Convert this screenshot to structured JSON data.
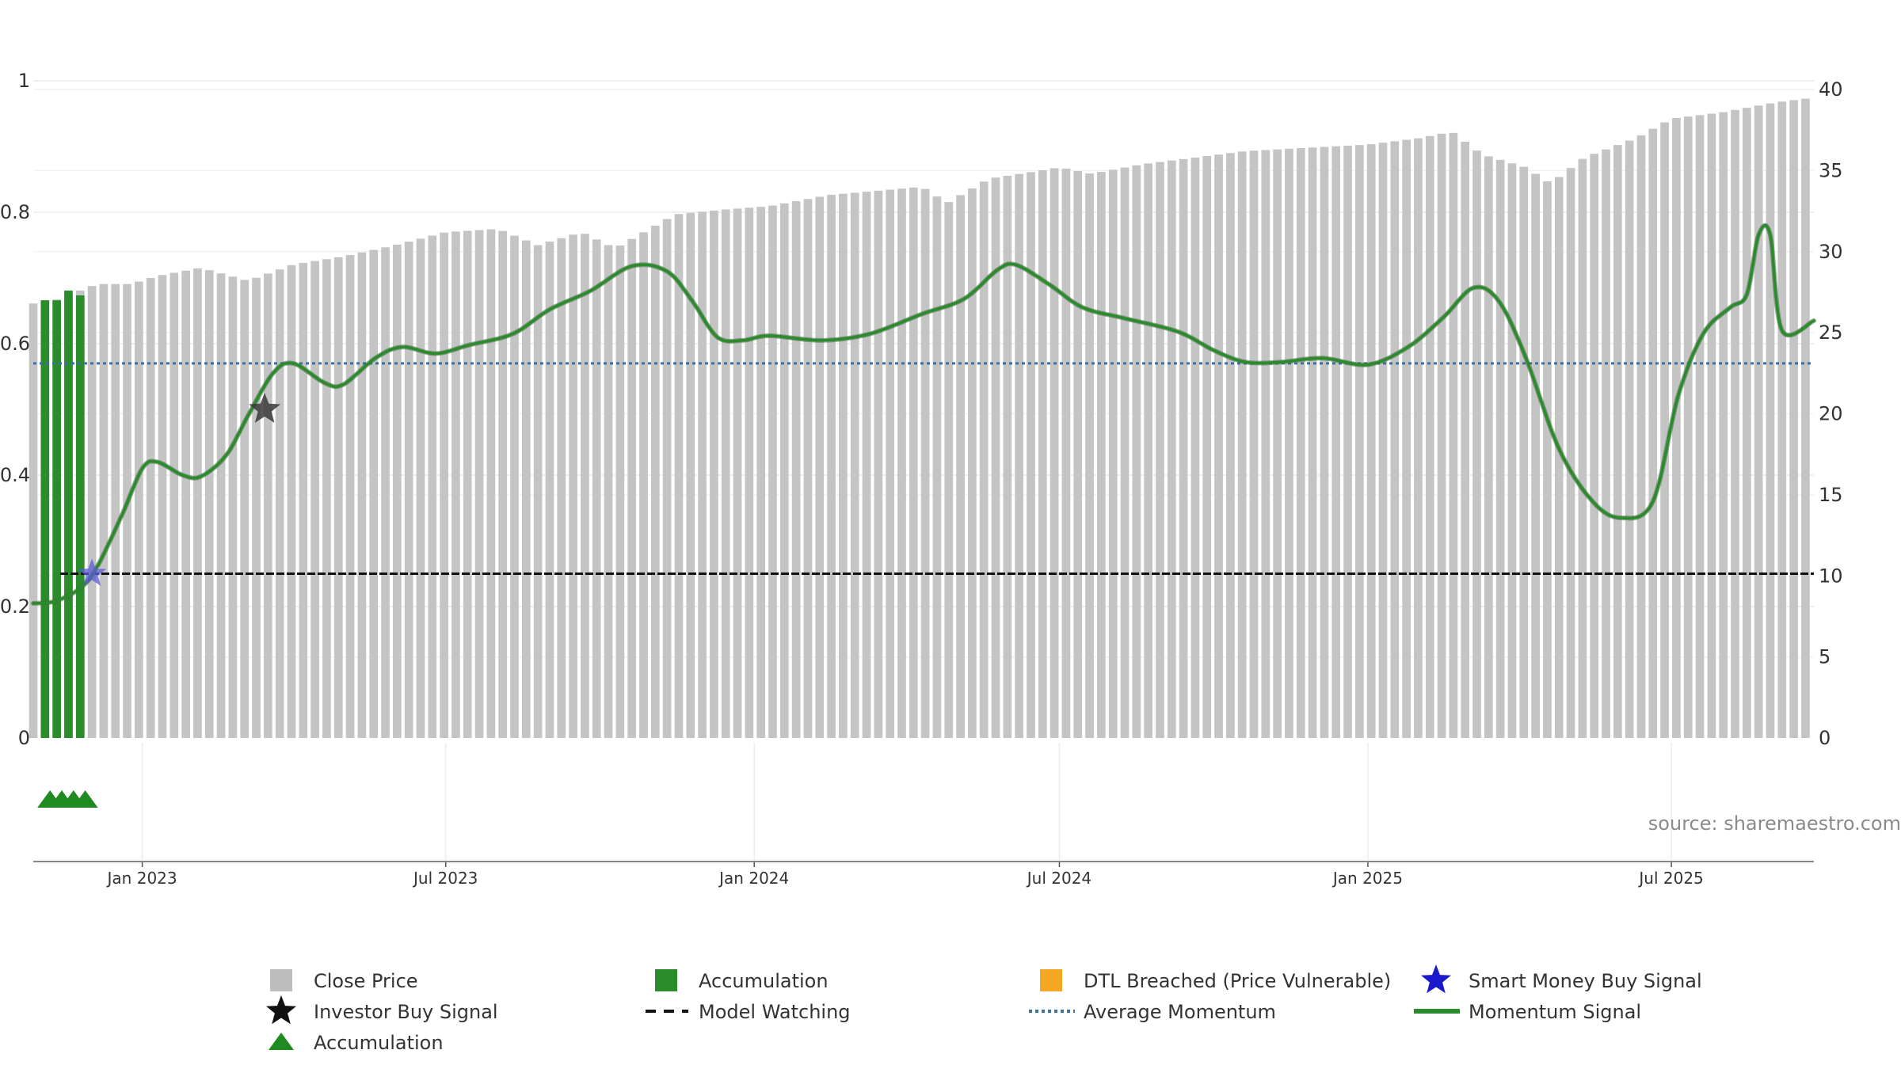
{
  "chart_data": {
    "type": "bar+line",
    "source": "source: sharemaestro.com",
    "left_axis": {
      "range": [
        0,
        1
      ],
      "ticks": [
        "0",
        "0.2",
        "0.4",
        "0.6",
        "0.8",
        "1"
      ]
    },
    "right_axis": {
      "range": [
        0,
        40
      ],
      "ticks": [
        "0",
        "5",
        "10",
        "15",
        "20",
        "25",
        "30",
        "35",
        "40"
      ]
    },
    "x_axis": {
      "start": "2022-10-28",
      "end": "2025-09-24",
      "ticks": [
        {
          "date": "2023-01-01",
          "label": "Jan 2023"
        },
        {
          "date": "2023-07-01",
          "label": "Jul 2023"
        },
        {
          "date": "2024-01-01",
          "label": "Jan 2024"
        },
        {
          "date": "2024-07-01",
          "label": "Jul 2024"
        },
        {
          "date": "2025-01-01",
          "label": "Jan 2025"
        },
        {
          "date": "2025-07-01",
          "label": "Jul 2025"
        }
      ]
    },
    "close_price": {
      "name": "Close Price",
      "bar_interval_weeks": 1,
      "anchors": [
        [
          "2022-10-28",
          26.8
        ],
        [
          "2022-11-10",
          27.0
        ],
        [
          "2022-11-25",
          27.6
        ],
        [
          "2022-12-05",
          28.0
        ],
        [
          "2022-12-25",
          28.0
        ],
        [
          "2023-01-10",
          28.5
        ],
        [
          "2023-02-05",
          29.0
        ],
        [
          "2023-03-05",
          28.2
        ],
        [
          "2023-04-01",
          29.2
        ],
        [
          "2023-05-01",
          29.7
        ],
        [
          "2023-06-01",
          30.4
        ],
        [
          "2023-07-01",
          31.2
        ],
        [
          "2023-08-01",
          31.4
        ],
        [
          "2023-08-25",
          30.4
        ],
        [
          "2023-09-20",
          31.2
        ],
        [
          "2023-10-10",
          30.2
        ],
        [
          "2023-11-15",
          32.3
        ],
        [
          "2023-12-15",
          32.6
        ],
        [
          "2024-01-10",
          32.8
        ],
        [
          "2024-02-15",
          33.5
        ],
        [
          "2024-03-20",
          33.8
        ],
        [
          "2024-04-10",
          34.0
        ],
        [
          "2024-04-25",
          33.0
        ],
        [
          "2024-05-20",
          34.5
        ],
        [
          "2024-06-20",
          35.0
        ],
        [
          "2024-07-01",
          35.2
        ],
        [
          "2024-07-20",
          34.8
        ],
        [
          "2024-08-20",
          35.4
        ],
        [
          "2024-09-20",
          35.8
        ],
        [
          "2024-10-20",
          36.2
        ],
        [
          "2024-11-25",
          36.4
        ],
        [
          "2025-01-01",
          36.6
        ],
        [
          "2025-02-01",
          37.0
        ],
        [
          "2025-02-20",
          37.4
        ],
        [
          "2025-03-10",
          36.0
        ],
        [
          "2025-04-05",
          35.2
        ],
        [
          "2025-04-20",
          34.2
        ],
        [
          "2025-05-10",
          35.8
        ],
        [
          "2025-06-10",
          37.0
        ],
        [
          "2025-07-01",
          38.2
        ],
        [
          "2025-08-01",
          38.6
        ],
        [
          "2025-09-01",
          39.2
        ],
        [
          "2025-09-24",
          39.5
        ]
      ]
    },
    "accumulation_bars": {
      "name": "Accumulation",
      "color": "#2a8c2a",
      "bars": [
        [
          "2022-11-04",
          27.0
        ],
        [
          "2022-11-11",
          27.0
        ],
        [
          "2022-11-18",
          27.6
        ],
        [
          "2022-11-25",
          27.3
        ]
      ]
    },
    "momentum_signal": {
      "name": "Momentum Signal",
      "color": "#2b8a2b",
      "axis": "left",
      "points": [
        [
          "2022-10-28",
          0.205
        ],
        [
          "2022-11-10",
          0.208
        ],
        [
          "2022-11-25",
          0.228
        ],
        [
          "2022-12-05",
          0.26
        ],
        [
          "2022-12-20",
          0.34
        ],
        [
          "2023-01-01",
          0.41
        ],
        [
          "2023-01-10",
          0.42
        ],
        [
          "2023-01-25",
          0.4
        ],
        [
          "2023-02-05",
          0.398
        ],
        [
          "2023-02-20",
          0.43
        ],
        [
          "2023-03-05",
          0.49
        ],
        [
          "2023-03-20",
          0.555
        ],
        [
          "2023-04-01",
          0.57
        ],
        [
          "2023-04-20",
          0.54
        ],
        [
          "2023-05-01",
          0.538
        ],
        [
          "2023-05-20",
          0.578
        ],
        [
          "2023-06-05",
          0.595
        ],
        [
          "2023-06-25",
          0.585
        ],
        [
          "2023-07-15",
          0.598
        ],
        [
          "2023-08-10",
          0.615
        ],
        [
          "2023-09-01",
          0.652
        ],
        [
          "2023-09-25",
          0.68
        ],
        [
          "2023-10-20",
          0.718
        ],
        [
          "2023-11-10",
          0.71
        ],
        [
          "2023-11-25",
          0.665
        ],
        [
          "2023-12-10",
          0.61
        ],
        [
          "2023-12-25",
          0.605
        ],
        [
          "2024-01-10",
          0.612
        ],
        [
          "2024-02-10",
          0.605
        ],
        [
          "2024-03-10",
          0.615
        ],
        [
          "2024-04-10",
          0.645
        ],
        [
          "2024-05-05",
          0.668
        ],
        [
          "2024-05-25",
          0.712
        ],
        [
          "2024-06-05",
          0.72
        ],
        [
          "2024-06-25",
          0.69
        ],
        [
          "2024-07-15",
          0.655
        ],
        [
          "2024-08-10",
          0.638
        ],
        [
          "2024-09-10",
          0.618
        ],
        [
          "2024-10-01",
          0.59
        ],
        [
          "2024-10-20",
          0.572
        ],
        [
          "2024-11-10",
          0.572
        ],
        [
          "2024-12-05",
          0.578
        ],
        [
          "2025-01-01",
          0.568
        ],
        [
          "2025-01-25",
          0.595
        ],
        [
          "2025-02-15",
          0.64
        ],
        [
          "2025-03-05",
          0.685
        ],
        [
          "2025-03-20",
          0.665
        ],
        [
          "2025-04-05",
          0.58
        ],
        [
          "2025-04-25",
          0.44
        ],
        [
          "2025-05-15",
          0.36
        ],
        [
          "2025-06-01",
          0.335
        ],
        [
          "2025-06-20",
          0.36
        ],
        [
          "2025-07-05",
          0.52
        ],
        [
          "2025-07-20",
          0.615
        ],
        [
          "2025-08-05",
          0.655
        ],
        [
          "2025-08-15",
          0.675
        ],
        [
          "2025-08-22",
          0.765
        ],
        [
          "2025-08-29",
          0.765
        ],
        [
          "2025-09-05",
          0.62
        ],
        [
          "2025-09-24",
          0.635
        ]
      ]
    },
    "average_momentum": {
      "name": "Average Momentum",
      "value": 0.57,
      "color": "#3a6fa0"
    },
    "model_watching": {
      "name": "Model Watching",
      "value": 0.25,
      "color": "#111111"
    },
    "investor_buy_signals": [
      {
        "date": "2023-03-15",
        "value": 0.5
      }
    ],
    "smart_money_buy_signals": [
      {
        "date": "2022-12-02",
        "value": 0.25
      }
    ],
    "accumulation_triangles": [
      "2022-11-07",
      "2022-11-14",
      "2022-11-21",
      "2022-11-28"
    ],
    "legend": [
      {
        "label": "Close Price",
        "symbol": "square",
        "color": "#bdbdbd"
      },
      {
        "label": "Accumulation",
        "symbol": "square",
        "color": "#2a8c2a"
      },
      {
        "label": "DTL Breached (Price Vulnerable)",
        "symbol": "square",
        "color": "#f5a623"
      },
      {
        "label": "Smart Money Buy Signal",
        "symbol": "star",
        "color": "#1a1acc"
      },
      {
        "label": "Investor Buy Signal",
        "symbol": "star",
        "color": "#111111"
      },
      {
        "label": "Model Watching",
        "symbol": "dash",
        "color": "#111111"
      },
      {
        "label": "Average Momentum",
        "symbol": "dot",
        "color": "#3a6fa0"
      },
      {
        "label": "Momentum Signal",
        "symbol": "line",
        "color": "#2b8a2b"
      },
      {
        "label": "Accumulation",
        "symbol": "triangle",
        "color": "#1f8a1f"
      }
    ]
  }
}
